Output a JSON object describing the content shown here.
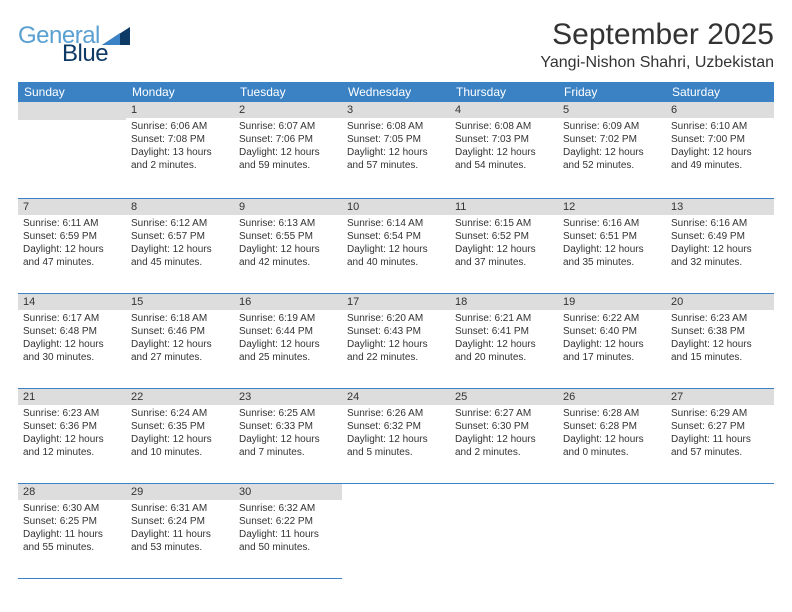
{
  "brand": {
    "text1": "General",
    "text2": "Blue",
    "shape_color": "#0e3a66"
  },
  "title": "September 2025",
  "location": "Yangi-Nishon Shahri, Uzbekistan",
  "colors": {
    "header_bg": "#3b82c4",
    "band_bg": "#dddddd",
    "border": "#3b82c4",
    "text": "#333333",
    "brand1": "#5aa0d1",
    "brand2": "#0e3a66",
    "page_bg": "#ffffff"
  },
  "day_headers": [
    "Sunday",
    "Monday",
    "Tuesday",
    "Wednesday",
    "Thursday",
    "Friday",
    "Saturday"
  ],
  "weeks": [
    [
      {
        "n": "",
        "sr": "",
        "ss": "",
        "dl": ""
      },
      {
        "n": "1",
        "sr": "Sunrise: 6:06 AM",
        "ss": "Sunset: 7:08 PM",
        "dl": "Daylight: 13 hours and 2 minutes."
      },
      {
        "n": "2",
        "sr": "Sunrise: 6:07 AM",
        "ss": "Sunset: 7:06 PM",
        "dl": "Daylight: 12 hours and 59 minutes."
      },
      {
        "n": "3",
        "sr": "Sunrise: 6:08 AM",
        "ss": "Sunset: 7:05 PM",
        "dl": "Daylight: 12 hours and 57 minutes."
      },
      {
        "n": "4",
        "sr": "Sunrise: 6:08 AM",
        "ss": "Sunset: 7:03 PM",
        "dl": "Daylight: 12 hours and 54 minutes."
      },
      {
        "n": "5",
        "sr": "Sunrise: 6:09 AM",
        "ss": "Sunset: 7:02 PM",
        "dl": "Daylight: 12 hours and 52 minutes."
      },
      {
        "n": "6",
        "sr": "Sunrise: 6:10 AM",
        "ss": "Sunset: 7:00 PM",
        "dl": "Daylight: 12 hours and 49 minutes."
      }
    ],
    [
      {
        "n": "7",
        "sr": "Sunrise: 6:11 AM",
        "ss": "Sunset: 6:59 PM",
        "dl": "Daylight: 12 hours and 47 minutes."
      },
      {
        "n": "8",
        "sr": "Sunrise: 6:12 AM",
        "ss": "Sunset: 6:57 PM",
        "dl": "Daylight: 12 hours and 45 minutes."
      },
      {
        "n": "9",
        "sr": "Sunrise: 6:13 AM",
        "ss": "Sunset: 6:55 PM",
        "dl": "Daylight: 12 hours and 42 minutes."
      },
      {
        "n": "10",
        "sr": "Sunrise: 6:14 AM",
        "ss": "Sunset: 6:54 PM",
        "dl": "Daylight: 12 hours and 40 minutes."
      },
      {
        "n": "11",
        "sr": "Sunrise: 6:15 AM",
        "ss": "Sunset: 6:52 PM",
        "dl": "Daylight: 12 hours and 37 minutes."
      },
      {
        "n": "12",
        "sr": "Sunrise: 6:16 AM",
        "ss": "Sunset: 6:51 PM",
        "dl": "Daylight: 12 hours and 35 minutes."
      },
      {
        "n": "13",
        "sr": "Sunrise: 6:16 AM",
        "ss": "Sunset: 6:49 PM",
        "dl": "Daylight: 12 hours and 32 minutes."
      }
    ],
    [
      {
        "n": "14",
        "sr": "Sunrise: 6:17 AM",
        "ss": "Sunset: 6:48 PM",
        "dl": "Daylight: 12 hours and 30 minutes."
      },
      {
        "n": "15",
        "sr": "Sunrise: 6:18 AM",
        "ss": "Sunset: 6:46 PM",
        "dl": "Daylight: 12 hours and 27 minutes."
      },
      {
        "n": "16",
        "sr": "Sunrise: 6:19 AM",
        "ss": "Sunset: 6:44 PM",
        "dl": "Daylight: 12 hours and 25 minutes."
      },
      {
        "n": "17",
        "sr": "Sunrise: 6:20 AM",
        "ss": "Sunset: 6:43 PM",
        "dl": "Daylight: 12 hours and 22 minutes."
      },
      {
        "n": "18",
        "sr": "Sunrise: 6:21 AM",
        "ss": "Sunset: 6:41 PM",
        "dl": "Daylight: 12 hours and 20 minutes."
      },
      {
        "n": "19",
        "sr": "Sunrise: 6:22 AM",
        "ss": "Sunset: 6:40 PM",
        "dl": "Daylight: 12 hours and 17 minutes."
      },
      {
        "n": "20",
        "sr": "Sunrise: 6:23 AM",
        "ss": "Sunset: 6:38 PM",
        "dl": "Daylight: 12 hours and 15 minutes."
      }
    ],
    [
      {
        "n": "21",
        "sr": "Sunrise: 6:23 AM",
        "ss": "Sunset: 6:36 PM",
        "dl": "Daylight: 12 hours and 12 minutes."
      },
      {
        "n": "22",
        "sr": "Sunrise: 6:24 AM",
        "ss": "Sunset: 6:35 PM",
        "dl": "Daylight: 12 hours and 10 minutes."
      },
      {
        "n": "23",
        "sr": "Sunrise: 6:25 AM",
        "ss": "Sunset: 6:33 PM",
        "dl": "Daylight: 12 hours and 7 minutes."
      },
      {
        "n": "24",
        "sr": "Sunrise: 6:26 AM",
        "ss": "Sunset: 6:32 PM",
        "dl": "Daylight: 12 hours and 5 minutes."
      },
      {
        "n": "25",
        "sr": "Sunrise: 6:27 AM",
        "ss": "Sunset: 6:30 PM",
        "dl": "Daylight: 12 hours and 2 minutes."
      },
      {
        "n": "26",
        "sr": "Sunrise: 6:28 AM",
        "ss": "Sunset: 6:28 PM",
        "dl": "Daylight: 12 hours and 0 minutes."
      },
      {
        "n": "27",
        "sr": "Sunrise: 6:29 AM",
        "ss": "Sunset: 6:27 PM",
        "dl": "Daylight: 11 hours and 57 minutes."
      }
    ],
    [
      {
        "n": "28",
        "sr": "Sunrise: 6:30 AM",
        "ss": "Sunset: 6:25 PM",
        "dl": "Daylight: 11 hours and 55 minutes."
      },
      {
        "n": "29",
        "sr": "Sunrise: 6:31 AM",
        "ss": "Sunset: 6:24 PM",
        "dl": "Daylight: 11 hours and 53 minutes."
      },
      {
        "n": "30",
        "sr": "Sunrise: 6:32 AM",
        "ss": "Sunset: 6:22 PM",
        "dl": "Daylight: 11 hours and 50 minutes."
      },
      {
        "n": "",
        "sr": "",
        "ss": "",
        "dl": ""
      },
      {
        "n": "",
        "sr": "",
        "ss": "",
        "dl": ""
      },
      {
        "n": "",
        "sr": "",
        "ss": "",
        "dl": ""
      },
      {
        "n": "",
        "sr": "",
        "ss": "",
        "dl": ""
      }
    ]
  ]
}
